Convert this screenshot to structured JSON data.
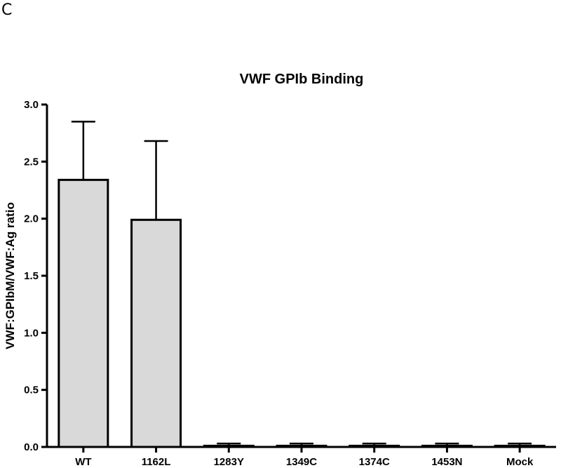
{
  "panel_label": "C",
  "colors": {
    "bar_fill": "#d9d9d9",
    "stroke": "#000000"
  },
  "chart_data": {
    "type": "bar",
    "title": "VWF GPIb Binding",
    "xlabel": "",
    "ylabel": "VWF:GPIbM/VWF:Ag ratio",
    "categories": [
      "WT",
      "1162L",
      "1283Y",
      "1349C",
      "1374C",
      "1453N",
      "Mock"
    ],
    "values": [
      2.34,
      1.99,
      0.01,
      0.01,
      0.01,
      0.01,
      0.01
    ],
    "errors": [
      0.51,
      0.69,
      0.02,
      0.02,
      0.02,
      0.02,
      0.02
    ],
    "ylim": [
      0,
      3.0
    ],
    "yticks": [
      "0.0",
      "0.5",
      "1.0",
      "1.5",
      "2.0",
      "2.5",
      "3.0"
    ],
    "grid": false,
    "legend": "none"
  }
}
